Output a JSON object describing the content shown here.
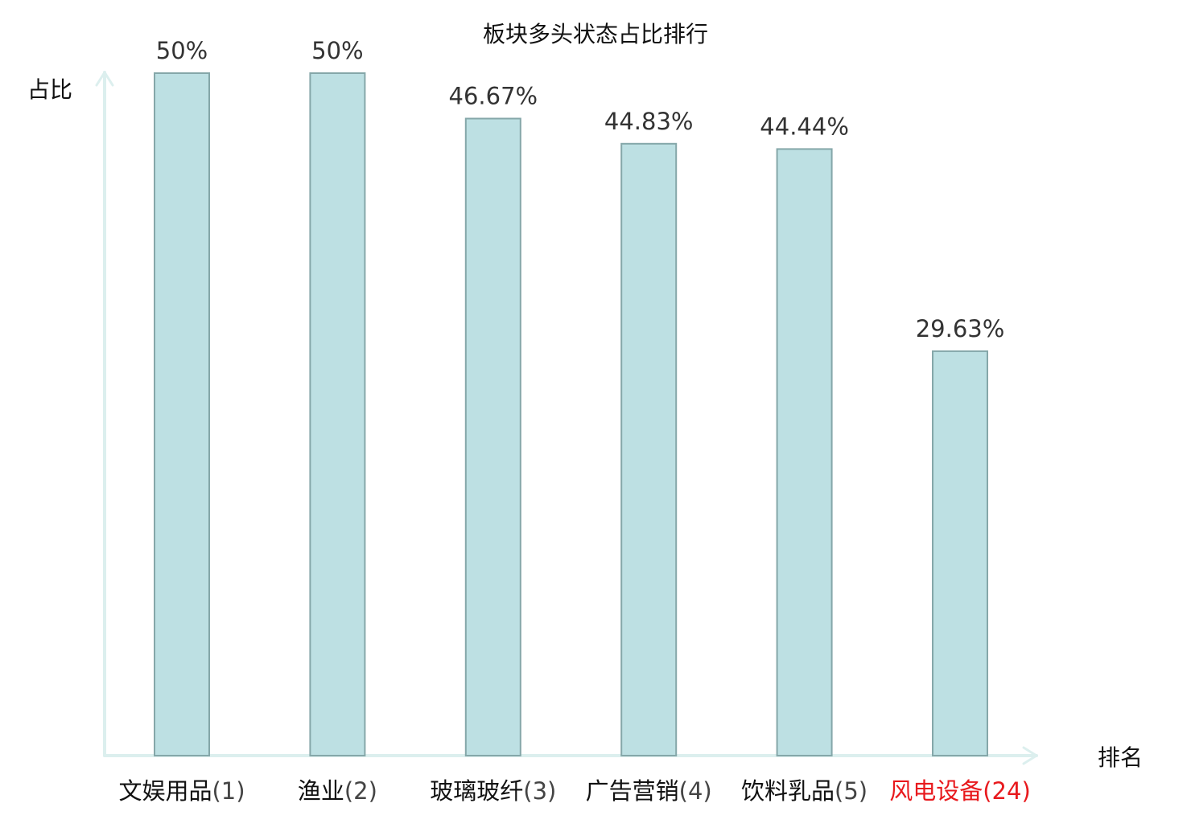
{
  "chart_data": {
    "type": "bar",
    "title": "板块多头状态占比排行",
    "ylabel": "占比",
    "xlabel": "排名",
    "ylim": [
      0,
      50
    ],
    "grid": false,
    "categories": [
      {
        "name": "文娱用品",
        "rank": "(1)",
        "highlight": false
      },
      {
        "name": "渔业",
        "rank": "(2)",
        "highlight": false
      },
      {
        "name": "玻璃玻纤",
        "rank": "(3)",
        "highlight": false
      },
      {
        "name": "广告营销",
        "rank": "(4)",
        "highlight": false
      },
      {
        "name": "饮料乳品",
        "rank": "(5)",
        "highlight": false
      },
      {
        "name": "风电设备",
        "rank": "(24)",
        "highlight": true
      }
    ],
    "values": [
      50,
      50,
      46.67,
      44.83,
      44.44,
      29.63
    ],
    "value_labels": [
      "50%",
      "50%",
      "46.67%",
      "44.83%",
      "44.44%",
      "29.63%"
    ]
  },
  "colors": {
    "bar_fill": "#bde0e3",
    "bar_stroke": "#85a7a9",
    "axis": "#dcefee",
    "text": "#111111",
    "value_text": "#333333",
    "rank_text": "#444444",
    "highlight": "#e8191d"
  }
}
